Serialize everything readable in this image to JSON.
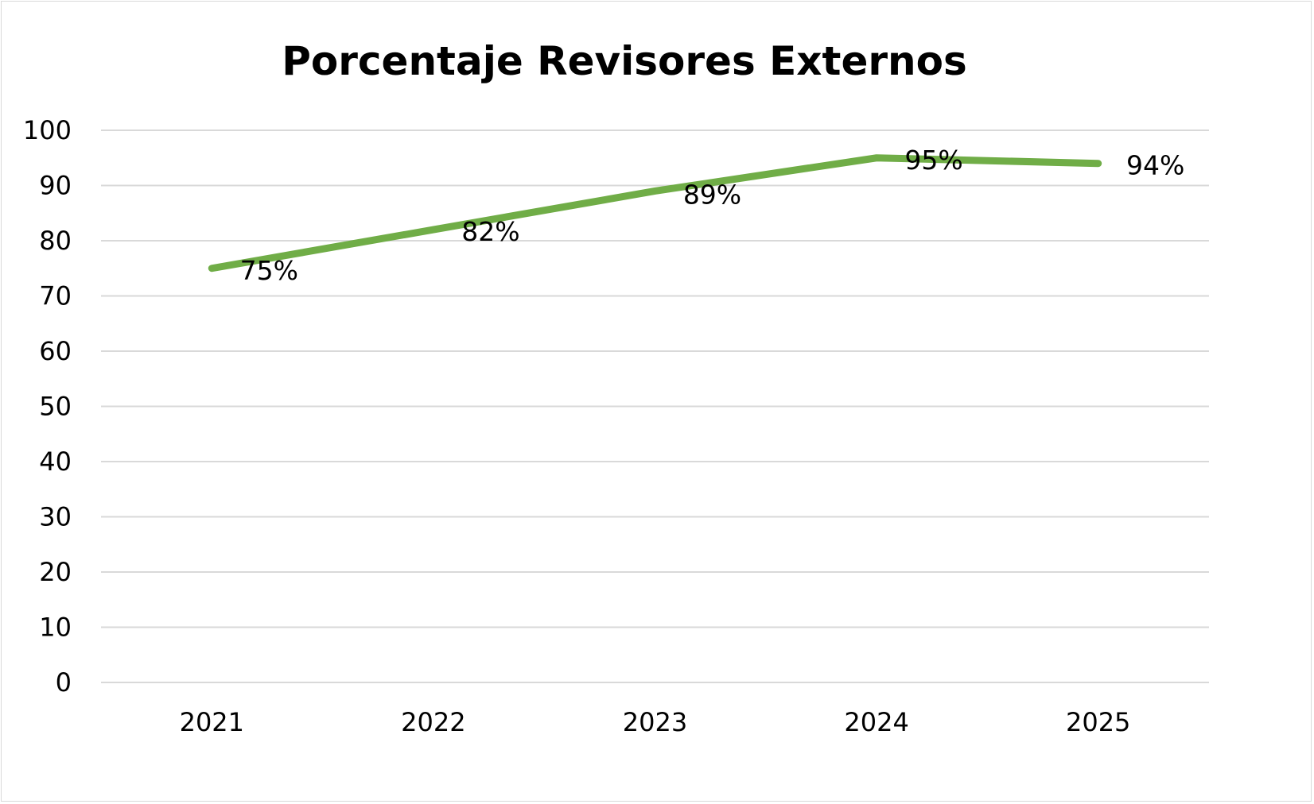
{
  "chart_data": {
    "type": "line",
    "title": "Porcentaje Revisores Externos",
    "xlabel": "",
    "ylabel": "",
    "categories": [
      "2021",
      "2022",
      "2023",
      "2024",
      "2025"
    ],
    "series": [
      {
        "values": [
          75,
          82,
          89,
          95,
          94
        ],
        "data_labels": [
          "75%",
          "82%",
          "89%",
          "95%",
          "94%"
        ],
        "color": "#70ad47"
      }
    ],
    "ylim": [
      0,
      100
    ],
    "yticks": [
      0,
      10,
      20,
      30,
      40,
      50,
      60,
      70,
      80,
      90,
      100
    ],
    "grid": true,
    "gridline_color": "#d9d9d9",
    "legend": "none"
  }
}
